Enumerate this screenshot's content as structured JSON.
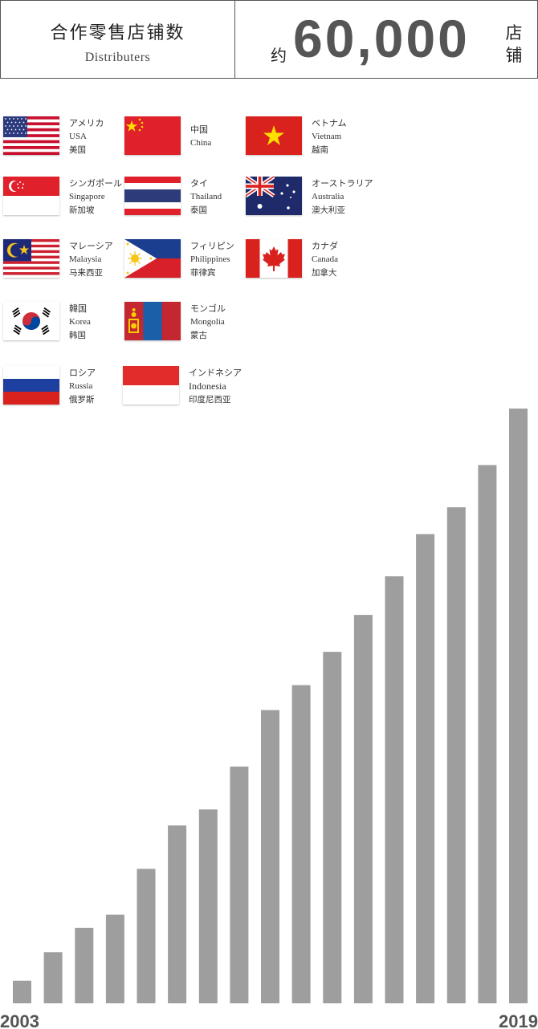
{
  "header": {
    "title": "合作零售店铺数",
    "subtitle": "Distributers",
    "approx": "约",
    "count": "60,000",
    "unit": "店铺"
  },
  "countries": [
    {
      "jp": "アメリカ",
      "en": "USA",
      "cn": "美国",
      "flag": "usa-flag"
    },
    {
      "jp": "中国",
      "en": "China",
      "cn": "",
      "flag": "china-flag"
    },
    {
      "jp": "ベトナム",
      "en": "Vietnam",
      "cn": "越南",
      "flag": "vietnam-flag"
    },
    {
      "jp": "シンガポール",
      "en": "Singapore",
      "cn": "新加坡",
      "flag": "singapore-flag"
    },
    {
      "jp": "タイ",
      "en": "Thailand",
      "cn": "泰国",
      "flag": "thailand-flag"
    },
    {
      "jp": "オーストラリア",
      "en": "Australia",
      "cn": "澳大利亚",
      "flag": "australia-flag"
    },
    {
      "jp": "マレーシア",
      "en": "Malaysia",
      "cn": "马来西亚",
      "flag": "malaysia-flag"
    },
    {
      "jp": "フィリピン",
      "en": "Philippines",
      "cn": "菲律宾",
      "flag": "philippines-flag"
    },
    {
      "jp": "カナダ",
      "en": "Canada",
      "cn": "加拿大",
      "flag": "canada-flag"
    },
    {
      "jp": "韓国",
      "en": "Korea",
      "cn": "韩国",
      "flag": "korea-flag"
    },
    {
      "jp": "モンゴル",
      "en": "Mongolia",
      "cn": "蒙古",
      "flag": "mongolia-flag"
    },
    {
      "jp": "ロシア",
      "en": "Russia",
      "cn": "俄罗斯",
      "flag": "russia-flag"
    },
    {
      "jp": "インドネシア",
      "en": "Indonesia",
      "cn": "印度尼西亚",
      "flag": "indonesia-flag"
    }
  ],
  "colors": {
    "bar": "#9d9e9d",
    "axis_text": "#555555"
  },
  "chart_data": {
    "type": "bar",
    "categories": [
      "2003",
      "2004",
      "2005",
      "2006",
      "2007",
      "2008",
      "2009",
      "2010",
      "2011",
      "2012",
      "2013",
      "2014",
      "2015",
      "2016",
      "2017",
      "2018",
      "2019"
    ],
    "values": [
      3.8,
      8.6,
      12.7,
      14.9,
      22.6,
      29.9,
      32.6,
      39.8,
      49.3,
      53.5,
      59.1,
      65.3,
      71.8,
      78.9,
      83.4,
      90.5,
      100
    ],
    "tick_labels": [
      "2003",
      "2019"
    ],
    "title": "",
    "xlabel": "",
    "ylabel": "",
    "ylim": [
      0,
      100
    ],
    "grid": false,
    "legend": "none"
  }
}
